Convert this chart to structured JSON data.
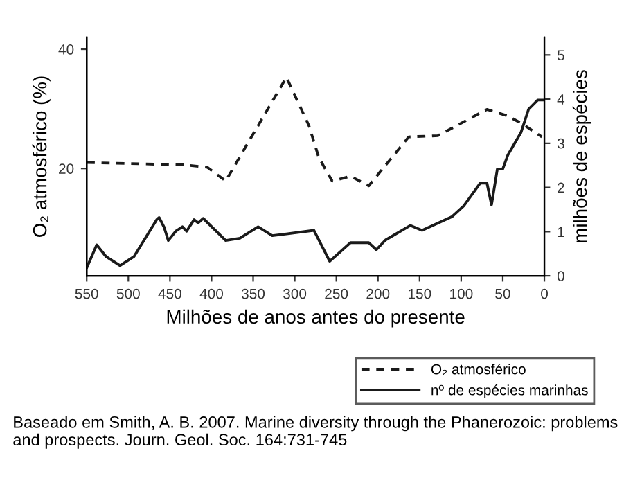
{
  "chart_data": {
    "type": "line",
    "xlabel": "Milhões de anos antes do presente",
    "ylabel": "O₂ atmosférico (%)",
    "y2label": "milhões de espécies",
    "xlim": [
      550,
      0
    ],
    "xticks": [
      550,
      500,
      450,
      400,
      350,
      300,
      250,
      200,
      150,
      100,
      50,
      0
    ],
    "ylim": [
      2,
      42
    ],
    "yticks": [
      20,
      40
    ],
    "y2lim": [
      0,
      5.4
    ],
    "y2ticks": [
      0,
      1,
      2,
      3,
      4,
      5
    ],
    "grid": false,
    "legend": "bottom right",
    "marker": "none",
    "series": [
      {
        "name": "O₂ atmosférico",
        "color": "#1a1a1a",
        "line_style": "dashed",
        "x": [
          550,
          432,
          405,
          383,
          310,
          283,
          271,
          255,
          233,
          211,
          163,
          128,
          69,
          44,
          28,
          3
        ],
        "values": [
          21.0,
          20.6,
          20.2,
          17.9,
          35.3,
          27.2,
          21.8,
          17.9,
          18.7,
          17.1,
          25.3,
          25.5,
          29.9,
          28.8,
          27.6,
          25.3
        ]
      },
      {
        "name": "nº de espécies marinhas",
        "color": "#1a1a1a",
        "line_style": "solid",
        "axis": "y2",
        "x": [
          550,
          538,
          527,
          510,
          493,
          466,
          463,
          457,
          452,
          443,
          435,
          430,
          421,
          416,
          410,
          383,
          366,
          344,
          327,
          310,
          277,
          258,
          233,
          211,
          202,
          191,
          161,
          147,
          111,
          97,
          77,
          69,
          63.5,
          56.5,
          50,
          44,
          28,
          19,
          8,
          0
        ],
        "values": [
          0.18,
          0.7,
          0.44,
          0.23,
          0.44,
          1.27,
          1.32,
          1.1,
          0.8,
          1.01,
          1.11,
          1.01,
          1.27,
          1.2,
          1.3,
          0.8,
          0.85,
          1.11,
          0.91,
          0.95,
          1.03,
          0.33,
          0.75,
          0.75,
          0.59,
          0.81,
          1.14,
          1.03,
          1.34,
          1.58,
          2.1,
          2.1,
          1.61,
          2.42,
          2.42,
          2.73,
          3.25,
          3.77,
          3.98,
          3.98
        ]
      }
    ],
    "annotations": [
      "Baseado em Smith, A. B. 2007. Marine diversity through the Phanerozoic: problems and prospects. Journ. Geol. Soc. 164:731-745"
    ]
  }
}
